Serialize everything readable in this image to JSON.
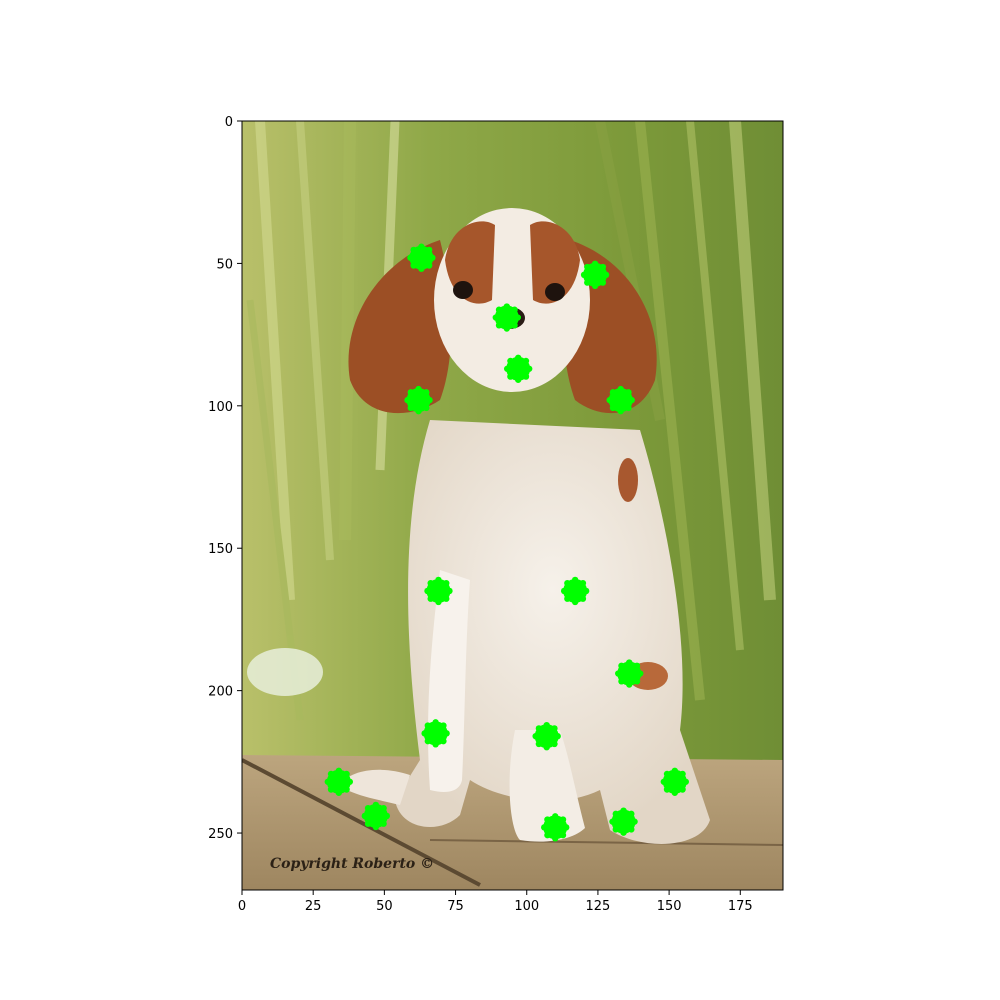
{
  "chart_data": {
    "type": "scatter",
    "title": "",
    "xlabel": "",
    "ylabel": "",
    "xlim": [
      0,
      190
    ],
    "ylim": [
      270,
      0
    ],
    "y_inverted": true,
    "grid": false,
    "x_ticks": [
      0,
      25,
      50,
      75,
      100,
      125,
      150,
      175
    ],
    "y_ticks": [
      0,
      50,
      100,
      150,
      200,
      250
    ],
    "marker_color": "#00ff00",
    "watermark": "Copyright Roberto ©",
    "keypoints": [
      {
        "x": 63,
        "y": 48
      },
      {
        "x": 124,
        "y": 54
      },
      {
        "x": 93,
        "y": 69
      },
      {
        "x": 97,
        "y": 87
      },
      {
        "x": 62,
        "y": 98
      },
      {
        "x": 133,
        "y": 98
      },
      {
        "x": 69,
        "y": 165
      },
      {
        "x": 117,
        "y": 165
      },
      {
        "x": 136,
        "y": 194
      },
      {
        "x": 68,
        "y": 215
      },
      {
        "x": 107,
        "y": 216
      },
      {
        "x": 34,
        "y": 232
      },
      {
        "x": 152,
        "y": 232
      },
      {
        "x": 47,
        "y": 244
      },
      {
        "x": 134,
        "y": 246
      },
      {
        "x": 110,
        "y": 248
      }
    ]
  }
}
